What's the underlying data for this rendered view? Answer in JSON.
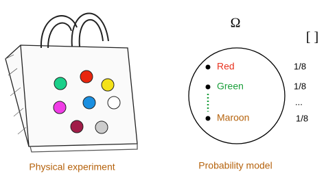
{
  "omega": "Ω",
  "brackets": "[  ]",
  "outcomes": [
    {
      "label": "Red",
      "probability": "1/8"
    },
    {
      "label": "Green",
      "probability": "1/8"
    },
    {
      "label": "Maroon",
      "probability": "1/8"
    }
  ],
  "ellipsis": "...",
  "captions": [
    "Physical experiment",
    "Probability model"
  ]
}
